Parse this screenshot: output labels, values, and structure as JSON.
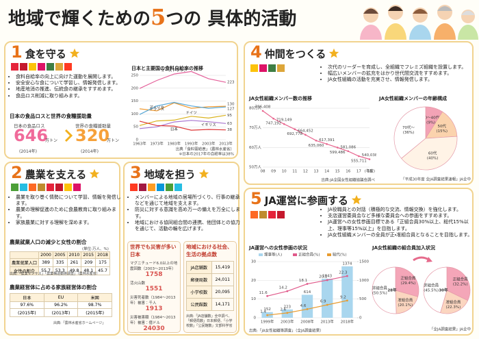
{
  "header": {
    "title_pre": "地域で輝くための",
    "title_num": "5",
    "title_post": "つの 具体的活動"
  },
  "sections": [
    {
      "num": "1",
      "title": "食を守る",
      "bullets": [
        "食料自給率の向上に向けた運動を展開します。",
        "安全安心な食について学習し、情報発信します。",
        "地産地消の推進、伝統食の継承をすすめます。",
        "食品ロス削減に取り組みます。"
      ]
    },
    {
      "num": "2",
      "title": "農業を支える",
      "bullets": [
        "農業を取り巻く情勢について学習、情報を発信します。",
        "農業の理解促進のために食農教育に取り組みます。",
        "家族農業に対する理解を深めます。"
      ]
    },
    {
      "num": "3",
      "title": "地域を担う",
      "bullets": [
        "メンバーによる地域の居場所づくり、行事の継承などを通じて地域を支えます。",
        "防災に対する意識を高め万一の備えを万全にします。",
        "地域における協同組合間の連携、他団体との協力を通じて、活動の輪を広げます。"
      ]
    },
    {
      "num": "4",
      "title": "仲間をつくる",
      "bullets": [
        "次代のリーダーを育成し、全組織でフレミズ組織を設置します。",
        "幅広いメンバーの拡充をはかり世代間交流をすすめます。",
        "JA女性組織の活動を充実させ、情報発信します。"
      ]
    },
    {
      "num": "5",
      "title": "JA運営に参画する",
      "bullets": [
        "JA役職員との対話（積極的な交流、情報交換）を強化します。",
        "支店運営委員会など多様な委員会への参画をすすめます。",
        "JA運営への女性参画目標である「正組合員30%以上、総代15%以上、理事等15%以上」を目指します。",
        "JA女性組織メンバーの全員が正・准組合員となることを目指します。"
      ]
    }
  ],
  "self_sufficiency": {
    "type": "line",
    "title": "日本と主要国の食料自給率の推移",
    "categories": [
      "1963年",
      "1973年",
      "1983年",
      "1993年",
      "2003年",
      "2013年"
    ],
    "series": [
      {
        "name": "オーストラリア",
        "color": "#e4609a",
        "values": [
          199,
          230,
          255,
          265,
          237,
          223
        ]
      },
      {
        "name": "アメリカ",
        "color": "#ef9a32",
        "values": [
          120,
          112,
          143,
          122,
          128,
          130
        ]
      },
      {
        "name": "フランス",
        "color": "#57a7d6",
        "values": [
          98,
          131,
          145,
          131,
          122,
          127
        ]
      },
      {
        "name": "ドイツ",
        "color": "#d9b21c",
        "values": [
          55,
          73,
          76,
          91,
          84,
          95
        ]
      },
      {
        "name": "イギリス",
        "color": "#a774cf",
        "values": [
          43,
          50,
          69,
          75,
          70,
          63
        ]
      },
      {
        "name": "日本",
        "color": "#dd3434",
        "values": [
          72,
          55,
          53,
          37,
          40,
          38
        ]
      }
    ],
    "ylim": [
      0,
      250
    ],
    "yticks": [
      0,
      50,
      100,
      150,
      200,
      250
    ],
    "grid": true,
    "source": "出典「食料需給表」（農林水産省）",
    "note": "※日本の2017年の自給率は38%"
  },
  "food_loss": {
    "title": "日本の食品ロスと世界の食糧援助量",
    "japan_label": "日本の食品ロス",
    "japan_value": "646",
    "japan_unit": "万トン",
    "japan_year": "(2014年)",
    "world_label": "世界の食糧援助量",
    "world_value": "320",
    "world_unit": "万トン",
    "world_year": "(2014年)"
  },
  "farm_population": {
    "title": "農業就業人口の減少と女性の割合",
    "unit": "(単位:万人、%)",
    "header": [
      "2000",
      "2005",
      "2010",
      "2015",
      "2018"
    ],
    "rows": [
      {
        "label": "農業就業人口",
        "cells": [
          "389",
          "335",
          "261",
          "209",
          "175"
        ]
      },
      {
        "label": "女性の割合",
        "cells": [
          "55.7",
          "53.3",
          "49.8",
          "48.1",
          "45.7"
        ]
      }
    ],
    "source": "出典:「農業センサス」「農業構造動態調査」（農林水産省）"
  },
  "family_farms": {
    "title": "農業経営体に占める家族経営体の割合",
    "header": [
      "日本",
      "EU",
      "米国"
    ],
    "rows": [
      {
        "cells": [
          "97.6%",
          "96.2%",
          "98.7%"
        ]
      },
      {
        "cells": [
          "(2015年)",
          "(2013年)",
          "(2015年)"
        ]
      }
    ],
    "source": "出典:「農林水産省ホームページ」"
  },
  "disasters": {
    "title": "世界でも災害が多い日本",
    "items": [
      {
        "label": "マグニチュード6.0以上の地震回数（2003〜2013年）",
        "value": "1758"
      },
      {
        "label": "活火山数",
        "value": "1551"
      },
      {
        "label": "災害死者数（1984〜2013年）被害：千人",
        "value": "1913"
      },
      {
        "label": "災害被害額（1984〜2013年）被害：億ドル",
        "value": "24030"
      }
    ]
  },
  "bases": {
    "title": "地域における社会、生活の拠点数",
    "rows": [
      [
        "JA店舗数",
        "15,419"
      ],
      [
        "郵便局数",
        "24,011"
      ],
      [
        "小学校数",
        "20,095"
      ],
      [
        "公民館数",
        "14,171"
      ]
    ],
    "source": "出典:「JA店舗数」全中調べ、「郵便局数」日本郵便、「小学校数」「公民館数」文部科学省"
  },
  "members": {
    "type": "line",
    "title": "JA女性組織メンバー数の推移",
    "categories": [
      "08",
      "09",
      "10",
      "11",
      "12",
      "13",
      "14",
      "15",
      "16",
      "17",
      "18"
    ],
    "values": [
      786408,
      747192,
      719149,
      692778,
      664452,
      635060,
      617391,
      599486,
      581086,
      555711,
      540038
    ],
    "value_labels": [
      "786,408",
      "747,192",
      "719,149",
      "692,778",
      "664,452",
      "635,060",
      "617,391",
      "599,486",
      "581,086",
      "555,711",
      "540,038"
    ],
    "color": "#e8668f",
    "ylim": [
      500000,
      800000
    ],
    "yticks": [
      {
        "value": 500000,
        "label": "50万人"
      },
      {
        "value": 600000,
        "label": "60万人"
      },
      {
        "value": 700000,
        "label": "70万人"
      },
      {
        "value": 800000,
        "label": "80万人"
      }
    ],
    "x_label": "(年度)",
    "source": "出典:JA全国女性組織協議会調べ"
  },
  "age_mix": {
    "type": "pie",
    "title": "JA女性組織メンバーの年齢構成",
    "labels": [
      "20〜40代",
      "50代",
      "60代",
      "70代〜"
    ],
    "values": [
      9,
      15,
      40,
      36
    ],
    "value_labels": [
      "(9%)",
      "(15%)",
      "(40%)",
      "(36%)"
    ],
    "colors": [
      "#f3a3b6",
      "#fbd3ad",
      "#fff3e6",
      "#ffffff"
    ],
    "source": "「平成30年度 全JA調査結果速報」JA全中"
  },
  "participation": {
    "type": "bar",
    "title": "JA運営への女性参画の状況",
    "categories": [
      "1999年",
      "2003年",
      "2008年",
      "2013年",
      "2018年"
    ],
    "series": [
      {
        "name": "理事等(人)",
        "type": "bar",
        "axis": "y2",
        "color": "#a9d6ee",
        "values": [
          152,
          223,
          614,
          1043,
          1374
        ]
      },
      {
        "name": "正組合員(%)",
        "type": "line",
        "color": "#e0598a",
        "values": [
          11.6,
          14.2,
          18.1,
          20.1,
          22.3
        ]
      },
      {
        "name": "総代(%)",
        "type": "line",
        "color": "#e89b2e",
        "values": [
          1.4,
          2.6,
          4.6,
          6.9,
          9.2
        ]
      }
    ],
    "ylim": [
      0,
      30
    ],
    "yticks": [
      0,
      10,
      20,
      30
    ],
    "y2lim": [
      0,
      1500
    ],
    "y2ticks": [
      0,
      500,
      1000,
      1500
    ],
    "source": "出典:「JA女性組織等調査」（全JA調査結果）"
  },
  "membership": {
    "title": "JA女性組織の組合員加入状況",
    "pies": [
      {
        "type": "pie",
        "center": "28年",
        "labels": [
          "正組合員",
          "准組合員",
          "非組合員"
        ],
        "values": [
          29.4,
          20.1,
          50.5
        ],
        "value_labels": [
          "(29.4%)",
          "(20.1%)",
          "(50.5%)"
        ],
        "colors": [
          "#f4a6b8",
          "#fbd6c0",
          "#ffffff"
        ]
      },
      {
        "type": "pie",
        "center": "30年",
        "labels": [
          "正組合員",
          "准組合員",
          "非組合員"
        ],
        "values": [
          32.2,
          22.3,
          45.5
        ],
        "value_labels": [
          "(32.2%)",
          "(22.3%)",
          "(45.5%)"
        ],
        "colors": [
          "#f4a6b8",
          "#fbd6c0",
          "#ffffff"
        ]
      }
    ],
    "source": "「全JA調査結果」JA全中"
  }
}
